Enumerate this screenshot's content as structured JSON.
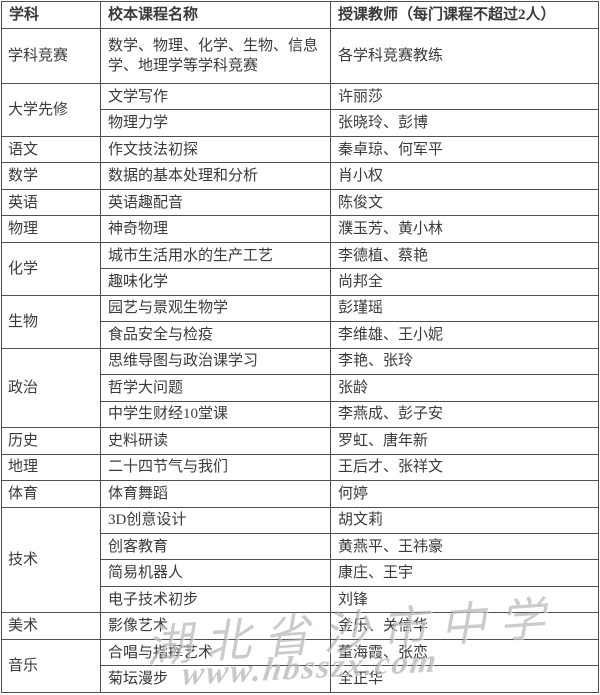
{
  "table": {
    "headers": [
      "学科",
      "校本课程名称",
      "授课教师（每门课程不超过2人）"
    ],
    "groups": [
      {
        "subject": "学科竞赛",
        "courses": [
          {
            "name": "数学、物理、化学、生物、信息学、地理学等学科竞赛",
            "teachers": "各学科竞赛教练",
            "tall": true
          }
        ]
      },
      {
        "subject": "大学先修",
        "courses": [
          {
            "name": "文学写作",
            "teachers": "许丽莎"
          },
          {
            "name": "物理力学",
            "teachers": "张晓玲、彭博"
          }
        ]
      },
      {
        "subject": "语文",
        "courses": [
          {
            "name": "作文技法初探",
            "teachers": "秦卓琼、何军平"
          }
        ]
      },
      {
        "subject": "数学",
        "courses": [
          {
            "name": "数据的基本处理和分析",
            "teachers": "肖小权"
          }
        ]
      },
      {
        "subject": "英语",
        "courses": [
          {
            "name": "英语趣配音",
            "teachers": "陈俊文"
          }
        ]
      },
      {
        "subject": "物理",
        "courses": [
          {
            "name": "神奇物理",
            "teachers": "濮玉芳、黄小林"
          }
        ]
      },
      {
        "subject": "化学",
        "courses": [
          {
            "name": "城市生活用水的生产工艺",
            "teachers": "李德植、蔡艳"
          },
          {
            "name": "趣味化学",
            "teachers": "尚邦全"
          }
        ]
      },
      {
        "subject": "生物",
        "courses": [
          {
            "name": "园艺与景观生物学",
            "teachers": "彭瑾瑶"
          },
          {
            "name": "食品安全与检疫",
            "teachers": "李维雄、王小妮"
          }
        ]
      },
      {
        "subject": "政治",
        "courses": [
          {
            "name": "思维导图与政治课学习",
            "teachers": "李艳、张玲"
          },
          {
            "name": "哲学大问题",
            "teachers": "张龄"
          },
          {
            "name": "中学生财经10堂课",
            "teachers": "李燕成、彭子安"
          }
        ]
      },
      {
        "subject": "历史",
        "courses": [
          {
            "name": "史料研读",
            "teachers": "罗虹、唐年新"
          }
        ]
      },
      {
        "subject": "地理",
        "courses": [
          {
            "name": "二十四节气与我们",
            "teachers": "王后才、张祥文"
          }
        ]
      },
      {
        "subject": "体育",
        "courses": [
          {
            "name": "体育舞蹈",
            "teachers": "何婷"
          }
        ]
      },
      {
        "subject": "技术",
        "courses": [
          {
            "name": "3D创意设计",
            "teachers": "胡文莉"
          },
          {
            "name": "创客教育",
            "teachers": "黄燕平、王祎豪"
          },
          {
            "name": "简易机器人",
            "teachers": "康庄、王宇"
          },
          {
            "name": "电子技术初步",
            "teachers": "刘锋"
          }
        ]
      },
      {
        "subject": "美术",
        "courses": [
          {
            "name": "影像艺术",
            "teachers": "金乐、关信华"
          }
        ]
      },
      {
        "subject": "音乐",
        "courses": [
          {
            "name": "合唱与指挥艺术",
            "teachers": "董海霞、张恋"
          },
          {
            "name": "菊坛漫步",
            "teachers": "全正华"
          }
        ]
      }
    ]
  },
  "watermark": {
    "school_text": "湖北省沙市中学",
    "url_text": "www.hbsszx.com"
  },
  "colors": {
    "text": "#3a3a3a",
    "border": "#4f4f4f",
    "background": "#ffffff",
    "watermark": "#7d7d7d"
  }
}
